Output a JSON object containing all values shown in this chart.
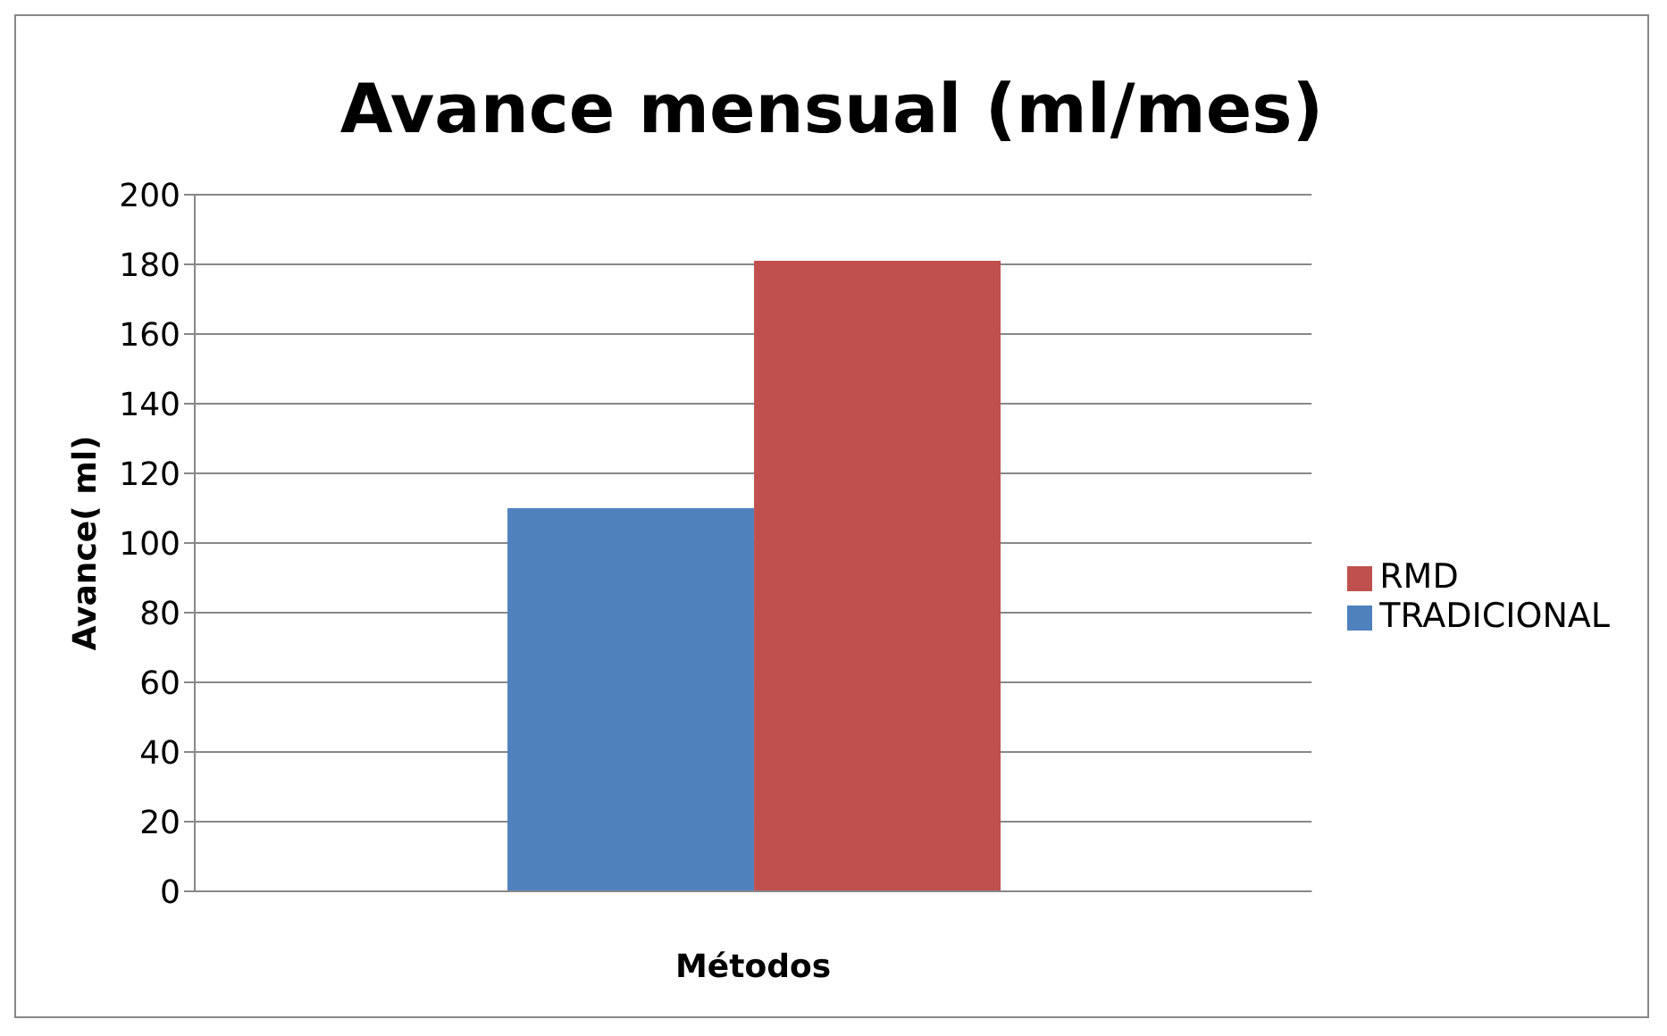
{
  "chart_data": {
    "type": "bar",
    "title": "Avance mensual (ml/mes)",
    "xlabel": "Métodos",
    "ylabel": "Avance( ml)",
    "categories": [
      null
    ],
    "series": [
      {
        "name": "TRADICIONAL",
        "color": "#4f81bd",
        "values": [
          110
        ]
      },
      {
        "name": "RMD",
        "color": "#c0504d",
        "values": [
          181
        ]
      }
    ],
    "ylim": [
      0,
      200
    ],
    "yticks": [
      0,
      20,
      40,
      60,
      80,
      100,
      120,
      140,
      160,
      180,
      200
    ],
    "grid": "y",
    "legend": "right"
  }
}
